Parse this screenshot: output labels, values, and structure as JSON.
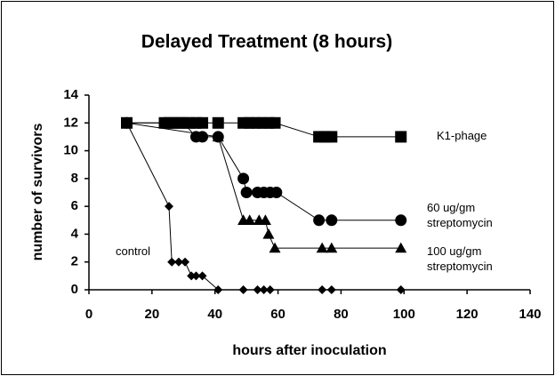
{
  "chart_data": {
    "type": "line",
    "title": "Delayed Treatment (8 hours)",
    "x_label": "hours after inoculation",
    "y_label": "number of survivors",
    "xlim": [
      0,
      140
    ],
    "xticks": [
      0,
      20,
      40,
      60,
      80,
      100,
      120,
      140
    ],
    "ylim": [
      0,
      14
    ],
    "yticks": [
      0,
      2,
      4,
      6,
      8,
      10,
      12,
      14
    ],
    "series": [
      {
        "name": "K1-phage",
        "color": "#000000",
        "marker": "square",
        "x": [
          12,
          24,
          26,
          28,
          30,
          32,
          34,
          36,
          41,
          49,
          51,
          53,
          55,
          57,
          59,
          73,
          75,
          77,
          99
        ],
        "values": [
          12,
          12,
          12,
          12,
          12,
          12,
          12,
          12,
          12,
          12,
          12,
          12,
          12,
          12,
          12,
          11,
          11,
          11,
          11
        ]
      },
      {
        "name": "60 ug/gm streptomycin",
        "color": "#000000",
        "marker": "circle",
        "x": [
          12,
          24,
          26,
          28,
          30,
          34,
          36,
          41,
          49,
          50,
          53.5,
          55.5,
          57.5,
          59.5,
          73,
          77,
          99
        ],
        "values": [
          12,
          12,
          12,
          12,
          12,
          11,
          11,
          11,
          8,
          7,
          7,
          7,
          7,
          7,
          5,
          5,
          5
        ]
      },
      {
        "name": "100 ug/gm streptomycin",
        "color": "#000000",
        "marker": "triangle",
        "x": [
          12,
          41,
          49,
          51,
          54,
          56,
          57,
          59,
          74,
          77,
          99
        ],
        "values": [
          12,
          11,
          5,
          5,
          5,
          5,
          4,
          3,
          3,
          3,
          3
        ]
      },
      {
        "name": "control",
        "color": "#000000",
        "marker": "diamond",
        "x": [
          12,
          25.4,
          26.3,
          28.5,
          30.5,
          32.5,
          34,
          36,
          41,
          49,
          53.5,
          55.5,
          57.5,
          74,
          77,
          99
        ],
        "values": [
          12,
          6,
          2,
          2,
          2,
          1,
          1,
          1,
          0,
          0,
          0,
          0,
          0,
          0,
          0,
          0
        ]
      }
    ]
  }
}
